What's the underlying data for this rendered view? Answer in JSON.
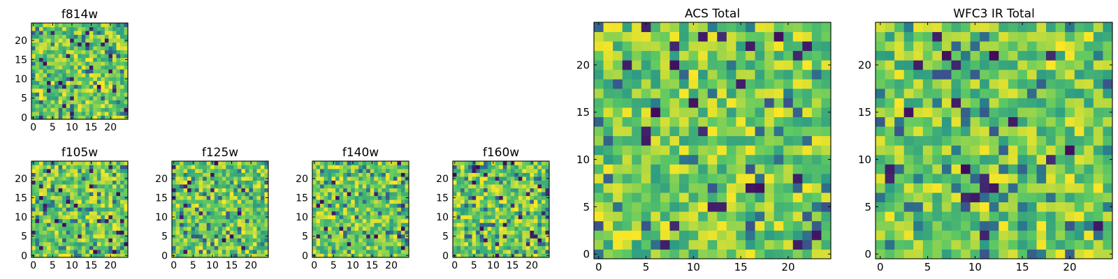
{
  "figure": {
    "colormap": "viridis",
    "colormap_stops": [
      "#440154",
      "#3b528b",
      "#21908d",
      "#5dc963",
      "#fde725"
    ]
  },
  "chart_data": [
    {
      "type": "heatmap",
      "title": "f814w",
      "grid_size": [
        25,
        25
      ],
      "seed": 814,
      "xticks": [
        0,
        5,
        10,
        15,
        20
      ],
      "yticks": [
        0,
        5,
        10,
        15,
        20
      ],
      "xlim": [
        -0.5,
        24.5
      ],
      "ylim": [
        -0.5,
        24.5
      ],
      "grid": false
    },
    {
      "type": "heatmap",
      "title": "f105w",
      "grid_size": [
        25,
        25
      ],
      "seed": 105,
      "xticks": [
        0,
        5,
        10,
        15,
        20
      ],
      "yticks": [
        0,
        5,
        10,
        15,
        20
      ],
      "xlim": [
        -0.5,
        24.5
      ],
      "ylim": [
        -0.5,
        24.5
      ],
      "grid": false
    },
    {
      "type": "heatmap",
      "title": "f125w",
      "grid_size": [
        25,
        25
      ],
      "seed": 125,
      "xticks": [
        0,
        5,
        10,
        15,
        20
      ],
      "yticks": [
        0,
        5,
        10,
        15,
        20
      ],
      "xlim": [
        -0.5,
        24.5
      ],
      "ylim": [
        -0.5,
        24.5
      ],
      "grid": false
    },
    {
      "type": "heatmap",
      "title": "f140w",
      "grid_size": [
        25,
        25
      ],
      "seed": 140,
      "xticks": [
        0,
        5,
        10,
        15,
        20
      ],
      "yticks": [
        0,
        5,
        10,
        15,
        20
      ],
      "xlim": [
        -0.5,
        24.5
      ],
      "ylim": [
        -0.5,
        24.5
      ],
      "grid": false
    },
    {
      "type": "heatmap",
      "title": "f160w",
      "grid_size": [
        25,
        25
      ],
      "seed": 160,
      "xticks": [
        0,
        5,
        10,
        15,
        20
      ],
      "yticks": [
        0,
        5,
        10,
        15,
        20
      ],
      "xlim": [
        -0.5,
        24.5
      ],
      "ylim": [
        -0.5,
        24.5
      ],
      "grid": false
    },
    {
      "type": "heatmap",
      "title": "ACS Total",
      "grid_size": [
        25,
        25
      ],
      "seed": 901,
      "xticks": [
        0,
        5,
        10,
        15,
        20
      ],
      "yticks": [
        0,
        5,
        10,
        15,
        20
      ],
      "xlim": [
        -0.5,
        24.5
      ],
      "ylim": [
        -0.5,
        24.5
      ],
      "grid": false
    },
    {
      "type": "heatmap",
      "title": "WFC3 IR Total",
      "grid_size": [
        25,
        25
      ],
      "seed": 902,
      "xticks": [
        0,
        5,
        10,
        15,
        20
      ],
      "yticks": [
        0,
        5,
        10,
        15,
        20
      ],
      "xlim": [
        -0.5,
        24.5
      ],
      "ylim": [
        -0.5,
        24.5
      ],
      "grid": false
    }
  ]
}
